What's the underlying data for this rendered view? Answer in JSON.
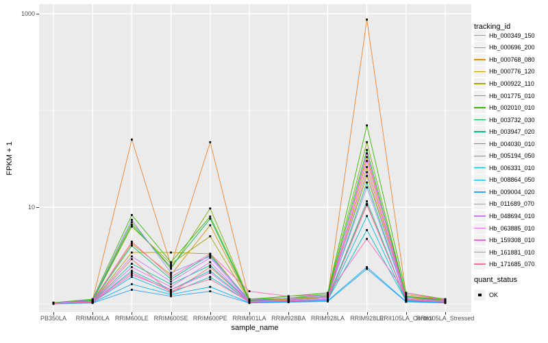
{
  "colors": {
    "panel_bg": "#EBEBEB",
    "grid": "#FFFFFF",
    "axis_text": "#4D4D4D",
    "text": "#000000",
    "marker": "#000000",
    "legend_key_bg": "#F2F2F2"
  },
  "chart_data": {
    "type": "line",
    "title": "",
    "xlabel": "sample_name",
    "ylabel": "FPKM + 1",
    "y_scale": "log10",
    "ylim": [
      0.82,
      1250
    ],
    "grid": true,
    "legend_position": "right",
    "legend_titles": {
      "series": "tracking_id",
      "quant": "quant_status"
    },
    "quant_legend": {
      "label": "OK",
      "marker": "black-square"
    },
    "y_major_ticks": [
      {
        "value": 10,
        "label": "10"
      },
      {
        "value": 1000,
        "label": "1000"
      }
    ],
    "y_minor_gridlines": [
      1,
      100
    ],
    "categories": [
      "PB350LA",
      "RRIM600LA",
      "RRIM600LE",
      "RRIM600SE",
      "RRIM600PE",
      "RRIM901LA",
      "RRIM928BA",
      "RRIM928LA",
      "RRIM928LE",
      "RRII105LA_Control",
      "RRII105LA_Stressed"
    ],
    "series": [
      {
        "name": "Hb_000349_150",
        "color": "#F8766D",
        "values": [
          1.02,
          1.05,
          2.9,
          1.3,
          2.4,
          1.05,
          1.1,
          1.15,
          10.8,
          1.1,
          1.05
        ]
      },
      {
        "name": "Hb_000696_200",
        "color": "#EA8331",
        "values": [
          1.03,
          1.1,
          50,
          2.5,
          47,
          1.1,
          1.15,
          1.2,
          870,
          1.25,
          1.1
        ]
      },
      {
        "name": "Hb_000768_080",
        "color": "#D89000",
        "values": [
          1.02,
          1.08,
          4.2,
          2.0,
          6.5,
          1.08,
          1.12,
          1.2,
          33,
          1.2,
          1.08
        ]
      },
      {
        "name": "Hb_000776_120",
        "color": "#C09B00",
        "values": [
          1.01,
          1.06,
          3.4,
          3.4,
          3.3,
          1.06,
          1.1,
          1.18,
          26,
          1.15,
          1.06
        ]
      },
      {
        "name": "Hb_000922_110",
        "color": "#A3A500",
        "values": [
          1.02,
          1.07,
          6.3,
          2.6,
          5.0,
          1.07,
          1.12,
          1.22,
          21,
          1.18,
          1.07
        ]
      },
      {
        "name": "Hb_001775_010",
        "color": "#7CAE00",
        "values": [
          1.02,
          1.1,
          7.0,
          2.3,
          9.7,
          1.1,
          1.2,
          1.3,
          47,
          1.2,
          1.1
        ]
      },
      {
        "name": "Hb_002010_010",
        "color": "#39B600",
        "values": [
          1.03,
          1.12,
          8.3,
          2.7,
          8.0,
          1.12,
          1.2,
          1.3,
          70,
          1.3,
          1.12
        ]
      },
      {
        "name": "Hb_003732_030",
        "color": "#00BB4E",
        "values": [
          1.02,
          1.08,
          6.6,
          2.4,
          7.6,
          1.08,
          1.15,
          1.25,
          39,
          1.2,
          1.08
        ]
      },
      {
        "name": "Hb_003947_020",
        "color": "#00BF7D",
        "values": [
          1.01,
          1.06,
          4.0,
          1.8,
          3.2,
          1.06,
          1.1,
          1.15,
          18,
          1.12,
          1.05
        ]
      },
      {
        "name": "Hb_004030_010",
        "color": "#00C1A3",
        "values": [
          1.01,
          1.05,
          2.6,
          1.6,
          2.5,
          1.05,
          1.08,
          1.12,
          11.5,
          1.1,
          1.04
        ]
      },
      {
        "name": "Hb_005194_050",
        "color": "#00BFC4",
        "values": [
          1.01,
          1.04,
          2.2,
          1.4,
          2.2,
          1.04,
          1.07,
          1.1,
          5.8,
          1.08,
          1.04
        ]
      },
      {
        "name": "Hb_006331_010",
        "color": "#00BAE0",
        "values": [
          1.01,
          1.04,
          1.9,
          1.3,
          1.9,
          1.04,
          1.06,
          1.1,
          8.1,
          1.08,
          1.03
        ]
      },
      {
        "name": "Hb_008864_050",
        "color": "#00B0F6",
        "values": [
          1.01,
          1.03,
          1.6,
          1.25,
          1.5,
          1.03,
          1.05,
          1.08,
          2.4,
          1.06,
          1.03
        ]
      },
      {
        "name": "Hb_009004_020",
        "color": "#35A2FF",
        "values": [
          1.0,
          1.02,
          1.4,
          1.2,
          1.35,
          1.02,
          1.04,
          1.06,
          2.3,
          1.05,
          1.02
        ]
      },
      {
        "name": "Hb_011689_070",
        "color": "#9590FF",
        "values": [
          1.02,
          1.1,
          7.4,
          2.1,
          3.1,
          1.1,
          1.15,
          1.2,
          16,
          1.15,
          1.08
        ]
      },
      {
        "name": "Hb_048694_010",
        "color": "#C77CFF",
        "values": [
          1.01,
          1.06,
          3.1,
          1.7,
          3.0,
          1.06,
          1.1,
          1.15,
          23,
          1.12,
          1.06
        ]
      },
      {
        "name": "Hb_063885_010",
        "color": "#E76BF3",
        "values": [
          1.01,
          1.05,
          2.4,
          1.5,
          2.7,
          1.05,
          1.08,
          1.12,
          36,
          1.1,
          1.05
        ]
      },
      {
        "name": "Hb_159308_010",
        "color": "#FA62DB",
        "values": [
          1.01,
          1.04,
          2.0,
          1.4,
          2.1,
          1.04,
          1.07,
          1.1,
          30,
          1.1,
          1.04
        ]
      },
      {
        "name": "Hb_161881_010",
        "color": "#FF62BC",
        "values": [
          1.02,
          1.06,
          4.4,
          1.9,
          3.3,
          1.35,
          1.2,
          1.25,
          4.7,
          1.3,
          1.1
        ]
      },
      {
        "name": "Hb_171685_070",
        "color": "#FF6A98",
        "values": [
          1.01,
          1.05,
          2.1,
          1.35,
          1.8,
          1.05,
          1.08,
          1.1,
          10.5,
          1.12,
          1.05
        ]
      }
    ]
  }
}
